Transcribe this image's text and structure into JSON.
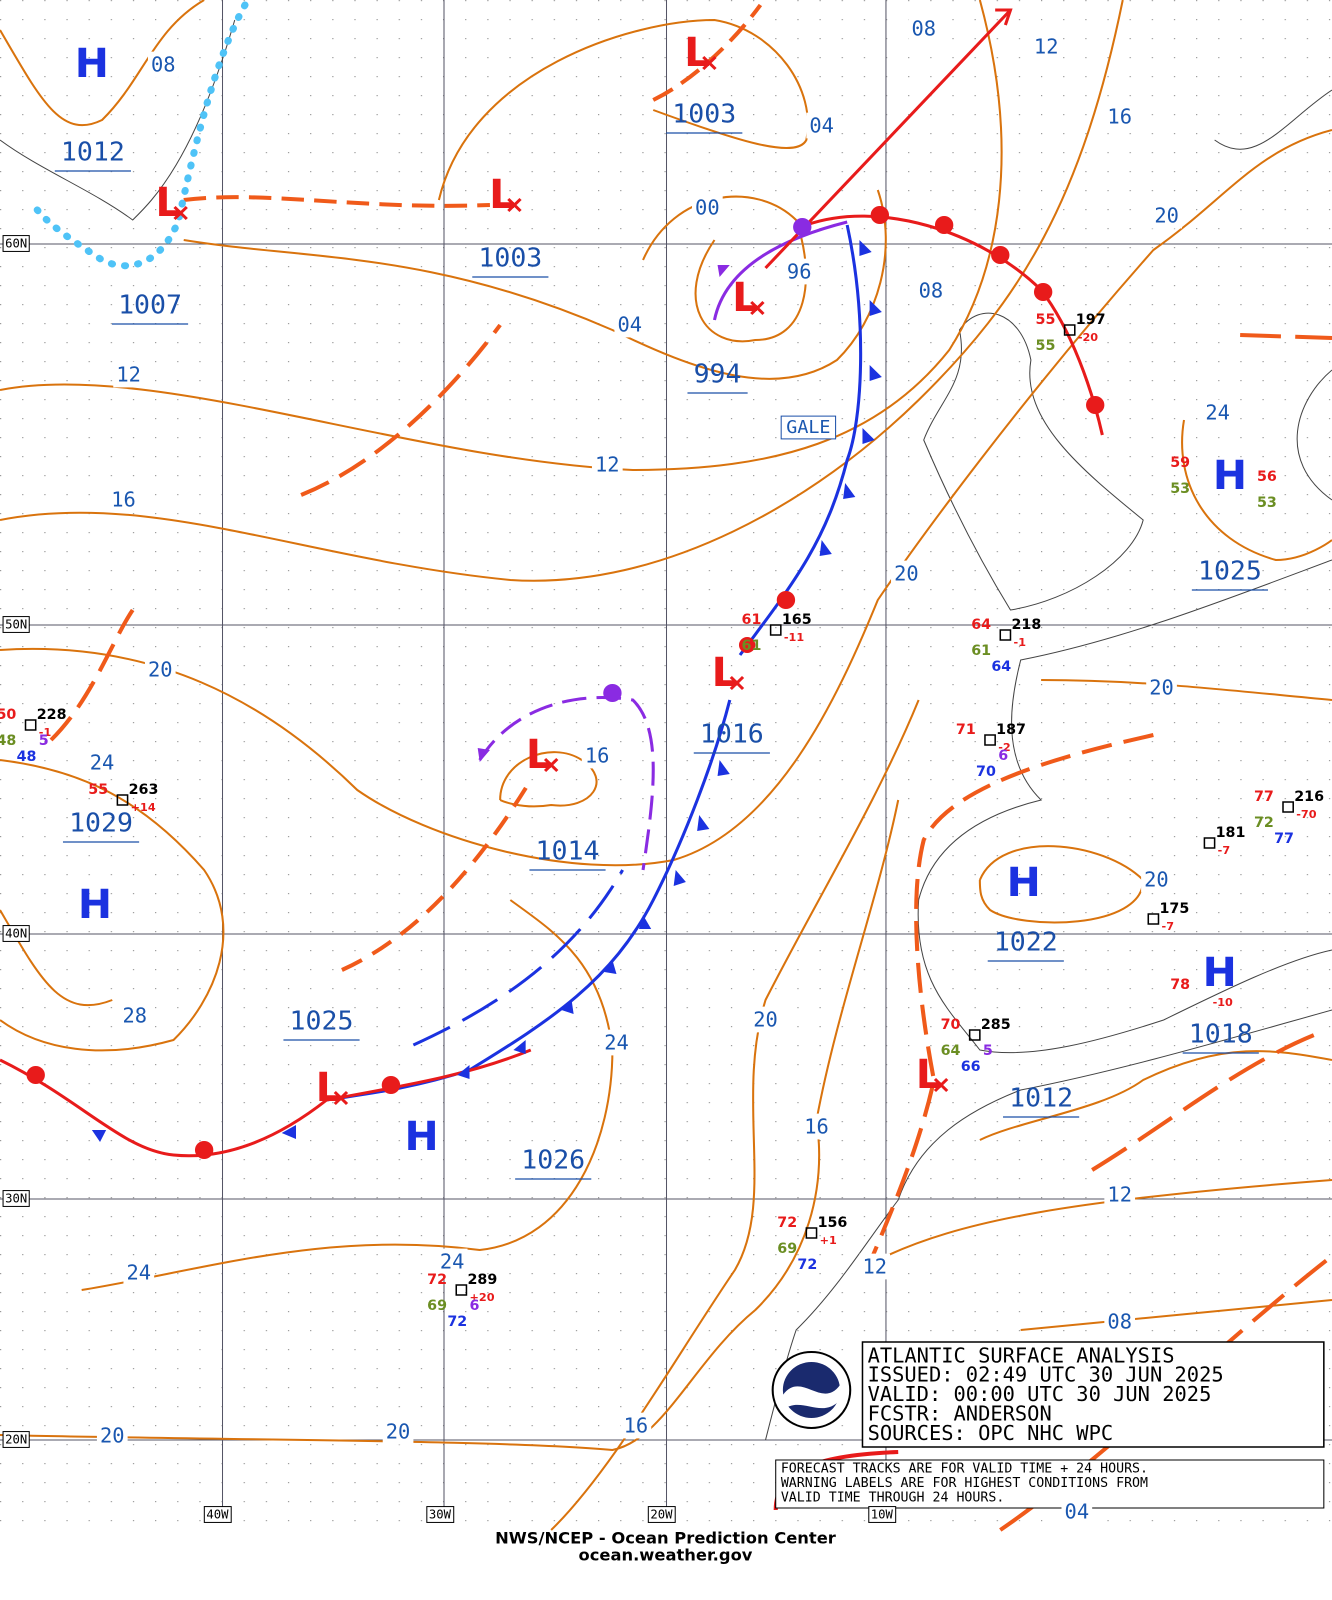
{
  "info": {
    "title": "ATLANTIC SURFACE ANALYSIS",
    "lines": [
      "ISSUED: 02:49 UTC 30 JUN 2025",
      "VALID:  00:00 UTC 30 JUN 2025",
      "FCSTR:  ANDERSON",
      "SOURCES: OPC NHC WPC"
    ],
    "notes": [
      "FORECAST TRACKS ARE FOR VALID TIME + 24 HOURS.",
      "WARNING LABELS ARE FOR HIGHEST CONDITIONS FROM",
      "VALID TIME THROUGH 24 HOURS."
    ]
  },
  "footer": [
    "NWS/NCEP - Ocean Prediction Center",
    "ocean.weather.gov"
  ],
  "latitudes": [
    "60N",
    "50N",
    "40N",
    "30N",
    "20N"
  ],
  "longitudes": [
    "40W",
    "30W",
    "20W",
    "10W"
  ],
  "systems": [
    "H",
    "L",
    "L",
    "L",
    "L",
    "L",
    "L",
    "H",
    "L",
    "H",
    "H",
    "H",
    "L",
    "H"
  ],
  "pressures": [
    "1012",
    "1007",
    "1003",
    "1003",
    "994",
    "1016",
    "1014",
    "1029",
    "1025",
    "1026",
    "1022",
    "1018",
    "1012",
    "1025"
  ],
  "isobars": [
    "08",
    "08",
    "12",
    "16",
    "04",
    "00",
    "96",
    "08",
    "04",
    "12",
    "12",
    "16",
    "20",
    "24",
    "20",
    "20",
    "20",
    "24",
    "16",
    "20",
    "28",
    "24",
    "20",
    "16",
    "12",
    "24",
    "24",
    "12",
    "08",
    "20",
    "20",
    "16",
    "04"
  ],
  "warnings": [
    "GALE"
  ],
  "stations": [
    {
      "temp": "55",
      "pressure": "197",
      "tendency": "-20",
      "dewpoint": "55"
    },
    {
      "temp": "61",
      "pressure": "165",
      "tendency": "-11",
      "dewpoint": "61"
    },
    {
      "temp": "64",
      "pressure": "218",
      "tendency": "-1",
      "dewpoint": "61",
      "wave": "64"
    },
    {
      "temp": "71",
      "pressure": "187",
      "tendency": "-2",
      "visibility": "6",
      "wave": "70"
    },
    {
      "temp": "50",
      "pressure": "228",
      "tendency": "-1",
      "dewpoint": "48",
      "visibility": "5",
      "wave": "48"
    },
    {
      "temp": "55",
      "pressure": "263",
      "tendency": "+14"
    },
    {
      "temp": "77",
      "pressure": "216",
      "tendency": "-70",
      "dewpoint": "72",
      "wave": "77"
    },
    {
      "pressure": "181",
      "tendency": "-7"
    },
    {
      "pressure": "175",
      "tendency": "-7"
    },
    {
      "temp": "78",
      "tendency": "-10"
    },
    {
      "temp": "70",
      "pressure": "285",
      "dewpoint": "64",
      "visibility": "5",
      "wave": "66"
    },
    {
      "temp": "72",
      "pressure": "156",
      "tendency": "+1",
      "dewpoint": "69",
      "wave": "72"
    },
    {
      "temp": "72",
      "pressure": "289",
      "tendency": "+20",
      "dewpoint": "69",
      "visibility": "6",
      "wave": "72"
    },
    {
      "temp": "59",
      "dewpoint": "53"
    },
    {
      "temp": "56",
      "dewpoint": "53"
    }
  ]
}
